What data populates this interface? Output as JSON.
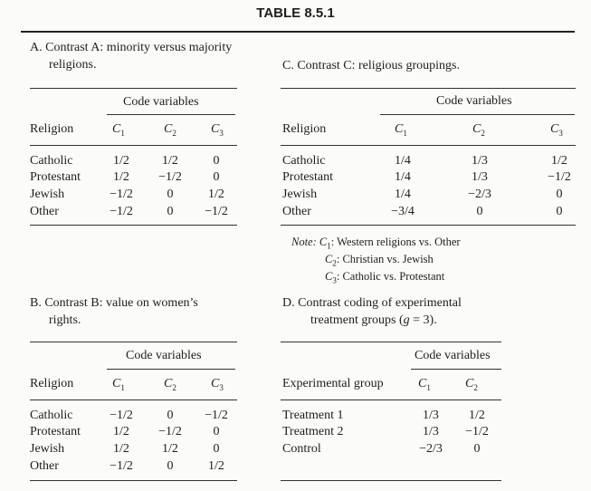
{
  "title": "TABLE 8.5.1",
  "header_label": "Religion",
  "code_variables_label": "Code variables",
  "code_columns": [
    "1",
    "2",
    "3"
  ],
  "religions": [
    "Catholic",
    "Protestant",
    "Jewish",
    "Other"
  ],
  "sectionA": {
    "title_line1": "A. Contrast A: minority versus majority",
    "title_line2": "religions.",
    "rows": [
      [
        "1/2",
        "1/2",
        "0"
      ],
      [
        "1/2",
        "−1/2",
        "0"
      ],
      [
        "−1/2",
        "0",
        "1/2"
      ],
      [
        "−1/2",
        "0",
        "−1/2"
      ]
    ]
  },
  "sectionB": {
    "title_line1": "B. Contrast B: value on women’s",
    "title_line2": "rights.",
    "rows": [
      [
        "−1/2",
        "0",
        "−1/2"
      ],
      [
        "1/2",
        "−1/2",
        "0"
      ],
      [
        "1/2",
        "1/2",
        "0"
      ],
      [
        "−1/2",
        "0",
        "1/2"
      ]
    ]
  },
  "sectionC": {
    "title": "C. Contrast C: religious groupings.",
    "rows": [
      [
        "1/4",
        "1/3",
        "1/2"
      ],
      [
        "1/4",
        "1/3",
        "−1/2"
      ],
      [
        "1/4",
        "−2/3",
        "0"
      ],
      [
        "−3/4",
        "0",
        "0"
      ]
    ],
    "note_label": "Note:",
    "note_lines": [
      ": Western religions vs. Other",
      ": Christian vs. Jewish",
      ": Catholic vs. Protestant"
    ]
  },
  "sectionD": {
    "title_line1": "D. Contrast coding of experimental",
    "title_line2_prefix": "treatment groups (",
    "title_line2_g": "g",
    "title_line2_suffix": " = 3).",
    "header_label": "Experimental group",
    "groups": [
      "Treatment 1",
      "Treatment 2",
      "Control"
    ],
    "rows": [
      [
        "1/3",
        "1/2"
      ],
      [
        "1/3",
        "−1/2"
      ],
      [
        "−2/3",
        "0"
      ]
    ]
  }
}
